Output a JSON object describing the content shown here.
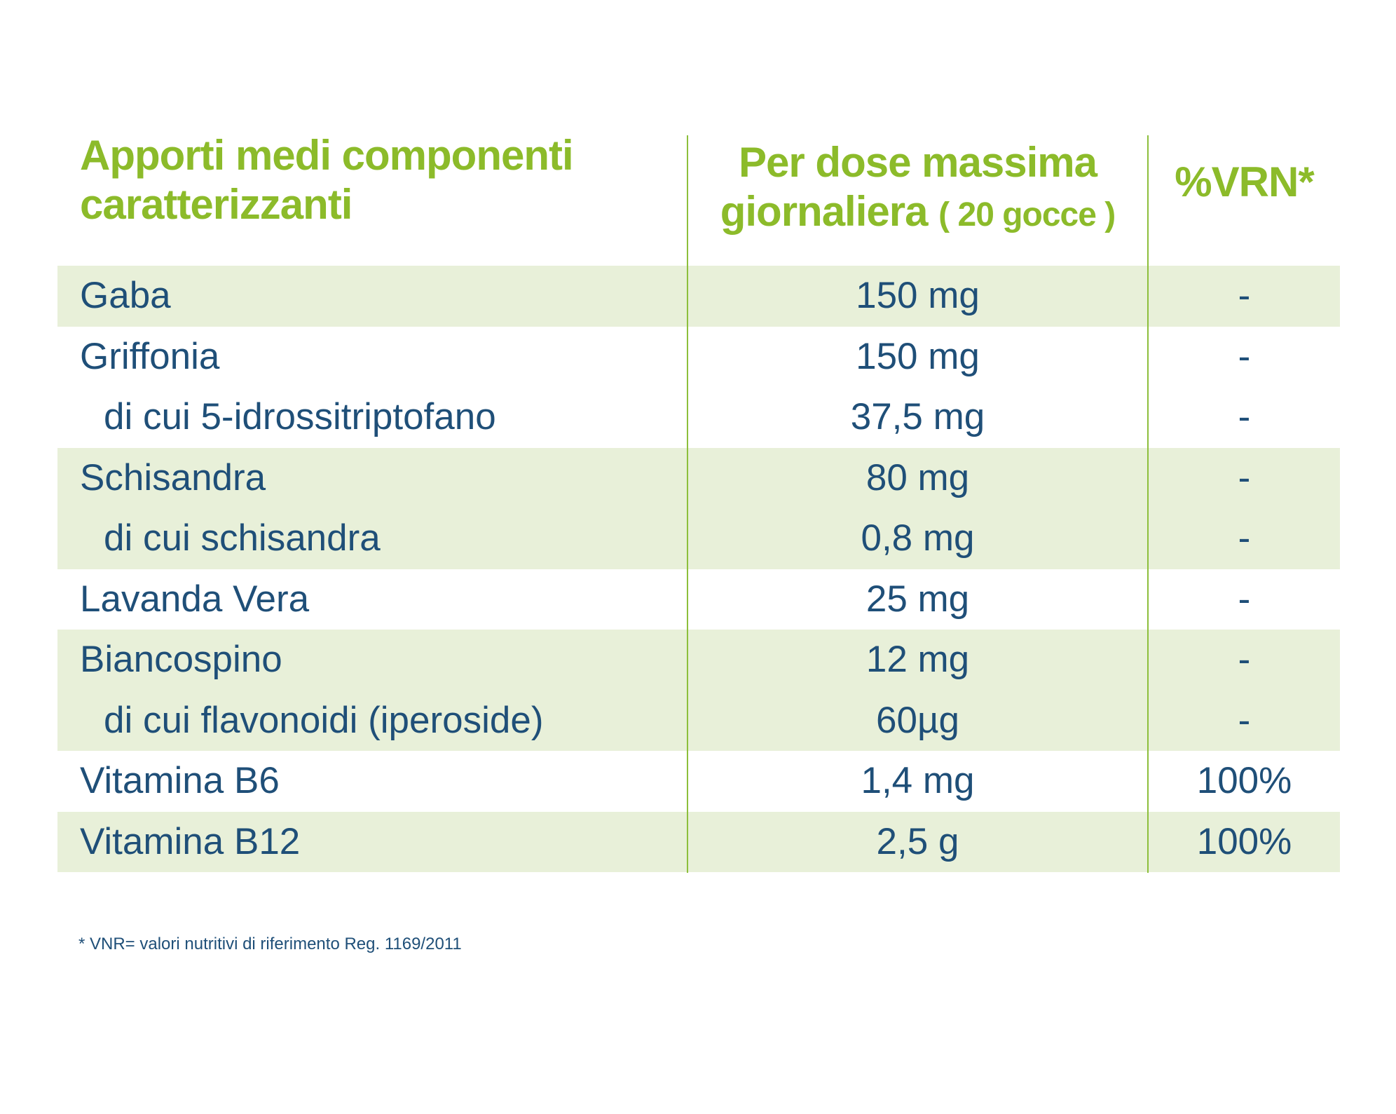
{
  "header": {
    "col1_line1": "Apporti medi componenti",
    "col1_line2": "caratterizzanti",
    "col2_line1": "Per dose massima",
    "col2_line2_main": "giornaliera",
    "col2_line2_small": "( 20 gocce )",
    "col3": "%VRN*"
  },
  "rows": [
    {
      "name": "Gaba",
      "dose": "150 mg",
      "vrn": "-",
      "shade": true,
      "sub": false
    },
    {
      "name": "Griffonia",
      "dose": "150 mg",
      "vrn": "-",
      "shade": false,
      "sub": false
    },
    {
      "name": "di cui 5-idrossitriptofano",
      "dose": "37,5 mg",
      "vrn": "-",
      "shade": false,
      "sub": true
    },
    {
      "name": "Schisandra",
      "dose": "80 mg",
      "vrn": "-",
      "shade": true,
      "sub": false
    },
    {
      "name": "di cui schisandra",
      "dose": "0,8 mg",
      "vrn": "-",
      "shade": true,
      "sub": true
    },
    {
      "name": "Lavanda Vera",
      "dose": "25 mg",
      "vrn": "-",
      "shade": false,
      "sub": false
    },
    {
      "name": "Biancospino",
      "dose": "12 mg",
      "vrn": "-",
      "shade": true,
      "sub": false
    },
    {
      "name": "di cui flavonoidi (iperoside)",
      "dose": "60µg",
      "vrn": "-",
      "shade": true,
      "sub": true
    },
    {
      "name": "Vitamina B6",
      "dose": "1,4 mg",
      "vrn": "100%",
      "shade": false,
      "sub": false
    },
    {
      "name": "Vitamina B12",
      "dose": "2,5 g",
      "vrn": "100%",
      "shade": true,
      "sub": false
    }
  ],
  "footnote": "* VNR= valori nutritivi di riferimento Reg. 1169/2011",
  "colors": {
    "header_green": "#8cbb2a",
    "text_blue": "#1f4f78",
    "row_shade": "#e8f0d9",
    "divider": "#8dbf3c"
  }
}
